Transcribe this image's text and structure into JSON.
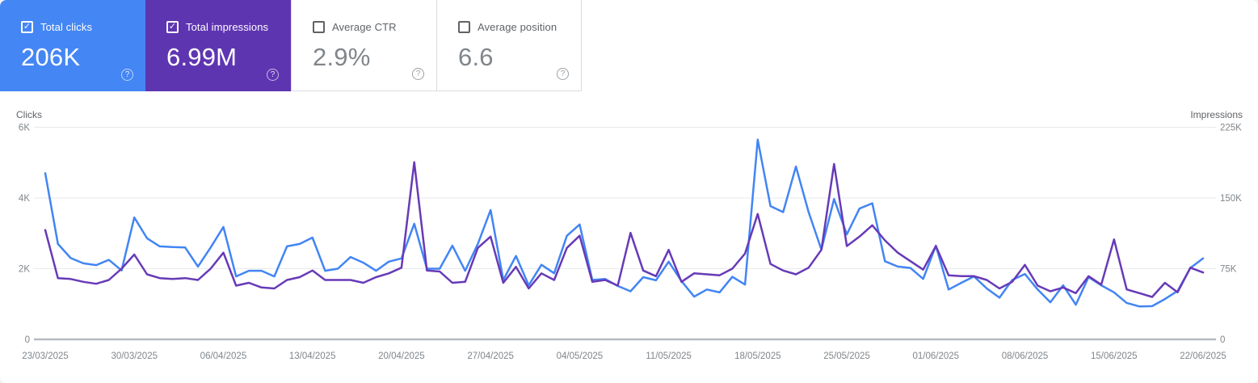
{
  "cards": [
    {
      "label": "Total clicks",
      "value": "206K",
      "checked": true,
      "bg": "#4486f4",
      "style": "colored"
    },
    {
      "label": "Total impressions",
      "value": "6.99M",
      "checked": true,
      "bg": "#5e35b1",
      "style": "colored"
    },
    {
      "label": "Average CTR",
      "value": "2.9%",
      "checked": false,
      "bg": "#ffffff",
      "style": "white"
    },
    {
      "label": "Average position",
      "value": "6.6",
      "checked": false,
      "bg": "#ffffff",
      "style": "white"
    }
  ],
  "help_icon_glyph": "?",
  "check_glyph": "✓",
  "chart_data": {
    "type": "line",
    "grid": true,
    "left_axis": {
      "title": "Clicks",
      "max": 6000,
      "ticks": [
        {
          "label": "6K",
          "value": 6000
        },
        {
          "label": "4K",
          "value": 4000
        },
        {
          "label": "2K",
          "value": 2000
        },
        {
          "label": "0",
          "value": 0
        }
      ]
    },
    "right_axis": {
      "title": "Impressions",
      "max": 225000,
      "ticks": [
        {
          "label": "225K",
          "value": 225000
        },
        {
          "label": "150K",
          "value": 150000
        },
        {
          "label": "75K",
          "value": 75000
        },
        {
          "label": "0",
          "value": 0
        }
      ]
    },
    "x_labels": [
      "23/03/2025",
      "30/03/2025",
      "06/04/2025",
      "13/04/2025",
      "20/04/2025",
      "27/04/2025",
      "04/05/2025",
      "11/05/2025",
      "18/05/2025",
      "25/05/2025",
      "01/06/2025",
      "08/06/2025",
      "15/06/2025",
      "22/06/2025"
    ],
    "x_label_every_n_points": 7,
    "series": [
      {
        "name": "Total clicks",
        "axis": "left",
        "color": "#4285f4",
        "values": [
          4700,
          2700,
          2300,
          2150,
          2100,
          2250,
          1950,
          3450,
          2860,
          2630,
          2610,
          2600,
          2060,
          2600,
          3180,
          1780,
          1940,
          1940,
          1780,
          2630,
          2700,
          2880,
          1940,
          2000,
          2330,
          2170,
          1940,
          2200,
          2290,
          3270,
          2000,
          2000,
          2650,
          1940,
          2700,
          3660,
          1680,
          2360,
          1530,
          2110,
          1870,
          2930,
          3250,
          1680,
          1710,
          1510,
          1360,
          1760,
          1670,
          2200,
          1650,
          1210,
          1410,
          1330,
          1770,
          1550,
          5650,
          3770,
          3600,
          4890,
          3600,
          2540,
          3970,
          2970,
          3700,
          3850,
          2210,
          2060,
          2020,
          1710,
          2650,
          1410,
          1600,
          1780,
          1440,
          1180,
          1680,
          1850,
          1410,
          1050,
          1530,
          980,
          1760,
          1530,
          1330,
          1030,
          930,
          940,
          1140,
          1370,
          2020,
          2290
        ]
      },
      {
        "name": "Total impressions",
        "axis": "right",
        "color": "#673ab7",
        "values": [
          116000,
          65000,
          64000,
          61000,
          59000,
          63000,
          75000,
          90000,
          69000,
          65000,
          64000,
          65000,
          63000,
          75000,
          92000,
          57000,
          60000,
          55000,
          54000,
          63000,
          66000,
          73000,
          63000,
          63000,
          63000,
          60000,
          66000,
          70000,
          76000,
          188000,
          73000,
          72000,
          60000,
          61000,
          97000,
          109000,
          60000,
          77000,
          54000,
          70000,
          63000,
          97000,
          110000,
          61000,
          63000,
          57000,
          113000,
          73000,
          67000,
          95000,
          61000,
          70000,
          69000,
          68000,
          75000,
          91000,
          133000,
          80000,
          73000,
          69000,
          76000,
          95000,
          186000,
          99000,
          109000,
          121000,
          105000,
          92000,
          83000,
          74000,
          99000,
          68000,
          67000,
          67000,
          63000,
          54000,
          61000,
          79000,
          57000,
          51000,
          55000,
          49000,
          67000,
          58000,
          106000,
          53000,
          49000,
          45000,
          60000,
          50000,
          76000,
          71000
        ]
      }
    ],
    "colors": {
      "gridline": "#e9eaec",
      "baseline": "#b6babf",
      "tick_text": "#80868b",
      "axis_title_text": "#5f6368"
    }
  }
}
